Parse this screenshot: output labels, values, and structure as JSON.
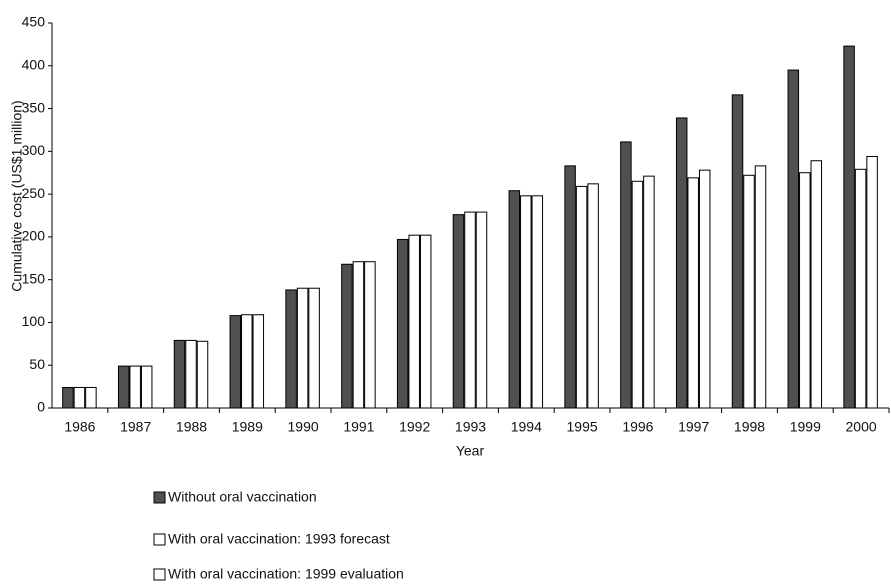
{
  "chart_data": {
    "type": "bar",
    "y_label": "Cumulative cost (US$1 million)",
    "x_label": "Year",
    "categories": [
      "1986",
      "1987",
      "1988",
      "1989",
      "1990",
      "1991",
      "1992",
      "1993",
      "1994",
      "1995",
      "1996",
      "1997",
      "1998",
      "1999",
      "2000"
    ],
    "series": [
      {
        "name": "Without oral vaccination",
        "color": "#505050",
        "values": [
          24,
          49,
          79,
          108,
          138,
          168,
          197,
          226,
          254,
          283,
          311,
          339,
          366,
          395,
          423
        ]
      },
      {
        "name": "With oral vaccination: 1993 forecast",
        "color": "#ffffff",
        "values": [
          24,
          49,
          79,
          109,
          140,
          171,
          202,
          229,
          248,
          259,
          265,
          269,
          272,
          275,
          279
        ]
      },
      {
        "name": "With oral vaccination: 1999 evaluation",
        "color": "#ffffff",
        "values": [
          24,
          49,
          78,
          109,
          140,
          171,
          202,
          229,
          248,
          262,
          271,
          278,
          283,
          289,
          294
        ]
      }
    ],
    "ylim": [
      0,
      450
    ],
    "yticks": [
      0,
      50,
      100,
      150,
      200,
      250,
      300,
      350,
      400,
      450
    ],
    "legend": "bottom-left"
  }
}
